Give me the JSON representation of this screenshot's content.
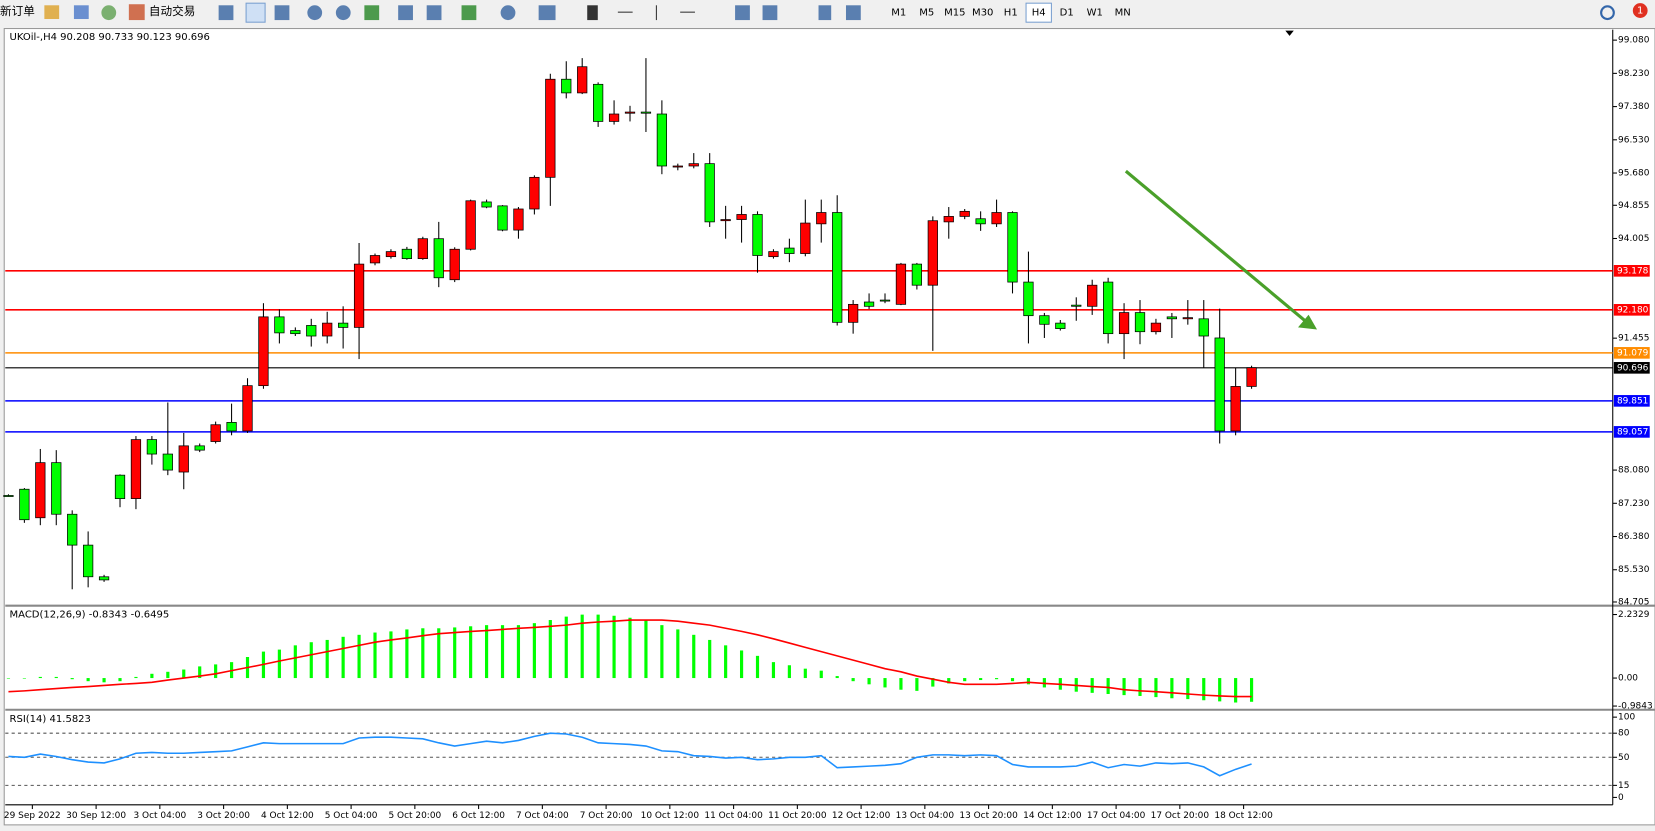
{
  "toolbar": {
    "new_order": "新订单",
    "auto_trade": "自动交易",
    "timeframes": [
      "M1",
      "M5",
      "M15",
      "M30",
      "H1",
      "H4",
      "D1",
      "W1",
      "MN"
    ],
    "active_timeframe": "H4",
    "notifications": "1"
  },
  "chart": {
    "type": "candlestick",
    "header": "UKOil-,H4  90.208 90.733 90.123 90.696",
    "up_color": "#ff0000",
    "down_color": "#00ff00",
    "ylim": [
      84.65,
      99.35
    ],
    "yticks": [
      {
        "value": 99.08,
        "label": "99.080"
      },
      {
        "value": 98.23,
        "label": "98.230"
      },
      {
        "value": 97.38,
        "label": "97.380"
      },
      {
        "value": 96.53,
        "label": "96.530"
      },
      {
        "value": 95.68,
        "label": "95.680"
      },
      94.855,
      {
        "value": 94.005,
        "label": "94.005"
      },
      91.455,
      {
        "value": 88.08,
        "label": "88.080"
      },
      {
        "value": 87.23,
        "label": "87.230"
      },
      {
        "value": 86.38,
        "label": "86.380"
      },
      {
        "value": 85.53,
        "label": "85.530"
      },
      84.705
    ],
    "levels": [
      {
        "value": 93.178,
        "color": "#ff0000"
      },
      {
        "value": 92.18,
        "label": "92.180",
        "color": "#ff0000"
      },
      {
        "value": 91.079,
        "color": "#ff8c00"
      },
      {
        "value": 90.696,
        "color": "#000000"
      },
      {
        "value": 89.851,
        "color": "#0000ff"
      },
      {
        "value": 89.057,
        "color": "#0000ff"
      }
    ],
    "time_labels": [
      "29 Sep 2022",
      "30 Sep 12:00",
      "3 Oct 04:00",
      "3 Oct 20:00",
      "4 Oct 12:00",
      "5 Oct 04:00",
      "5 Oct 20:00",
      "6 Oct 12:00",
      "7 Oct 04:00",
      "7 Oct 20:00",
      "10 Oct 12:00",
      "11 Oct 04:00",
      "11 Oct 20:00",
      "12 Oct 12:00",
      "13 Oct 04:00",
      "13 Oct 20:00",
      "14 Oct 12:00",
      "17 Oct 04:00",
      "17 Oct 20:00",
      "18 Oct 12:00"
    ],
    "candles": [
      [
        87.43,
        87.46,
        87.4,
        87.43
      ],
      [
        87.59,
        87.62,
        86.73,
        86.81
      ],
      [
        86.86,
        88.62,
        86.67,
        88.27
      ],
      [
        88.27,
        88.59,
        86.67,
        86.95
      ],
      [
        86.95,
        87.05,
        85.03,
        86.16
      ],
      [
        86.16,
        86.51,
        85.08,
        85.35
      ],
      [
        85.35,
        85.4,
        85.22,
        85.27
      ],
      [
        87.95,
        87.97,
        87.13,
        87.35
      ],
      [
        87.35,
        88.95,
        87.08,
        88.86
      ],
      [
        88.86,
        88.95,
        88.22,
        88.49
      ],
      [
        88.49,
        89.81,
        87.95,
        88.08
      ],
      [
        88.03,
        89.03,
        87.59,
        88.7
      ],
      [
        88.7,
        88.76,
        88.54,
        88.59
      ],
      [
        88.81,
        89.32,
        88.76,
        89.24
      ],
      [
        89.3,
        89.78,
        88.97,
        89.08
      ],
      [
        89.08,
        90.43,
        89.03,
        90.24
      ],
      [
        90.24,
        92.35,
        90.16,
        92.0
      ],
      [
        92.0,
        92.19,
        91.32,
        91.59
      ],
      [
        91.65,
        91.73,
        91.51,
        91.57
      ],
      [
        91.78,
        91.95,
        91.24,
        91.51
      ],
      [
        91.51,
        92.13,
        91.32,
        91.84
      ],
      [
        91.84,
        92.27,
        91.19,
        91.73
      ],
      [
        91.73,
        93.89,
        90.92,
        93.35
      ],
      [
        93.38,
        93.62,
        93.32,
        93.57
      ],
      [
        93.54,
        93.73,
        93.49,
        93.67
      ],
      [
        93.73,
        93.79,
        93.46,
        93.49
      ],
      [
        93.49,
        94.05,
        93.46,
        94.0
      ],
      [
        94.0,
        94.43,
        92.76,
        93.0
      ],
      [
        92.95,
        93.78,
        92.89,
        93.73
      ],
      [
        93.73,
        95.0,
        93.7,
        94.97
      ],
      [
        94.94,
        95.0,
        94.78,
        94.81
      ],
      [
        94.84,
        94.86,
        94.19,
        94.22
      ],
      [
        94.22,
        94.81,
        94.0,
        94.76
      ],
      [
        94.76,
        95.62,
        94.62,
        95.57
      ],
      [
        95.57,
        98.22,
        94.84,
        98.08
      ],
      [
        98.08,
        98.54,
        97.59,
        97.73
      ],
      [
        97.73,
        98.62,
        97.7,
        98.4
      ],
      [
        97.95,
        98.0,
        96.86,
        97.0
      ],
      [
        97.0,
        97.54,
        96.92,
        97.19
      ],
      [
        97.21,
        97.4,
        97.0,
        97.24
      ],
      [
        97.24,
        98.62,
        96.73,
        97.21
      ],
      [
        97.19,
        97.54,
        95.65,
        95.86
      ],
      [
        95.84,
        95.92,
        95.75,
        95.86
      ],
      [
        95.86,
        96.19,
        95.8,
        95.92
      ],
      [
        95.92,
        96.19,
        94.3,
        94.43
      ],
      [
        94.46,
        94.84,
        94.0,
        94.49
      ],
      [
        94.49,
        94.84,
        93.9,
        94.62
      ],
      [
        94.62,
        94.7,
        93.13,
        93.57
      ],
      [
        93.54,
        93.73,
        93.49,
        93.67
      ],
      [
        93.76,
        94.0,
        93.4,
        93.62
      ],
      [
        93.62,
        95.0,
        93.55,
        94.4
      ],
      [
        94.38,
        95.0,
        93.9,
        94.67
      ],
      [
        94.67,
        95.11,
        91.78,
        91.86
      ],
      [
        91.86,
        92.43,
        91.57,
        92.32
      ],
      [
        92.38,
        92.6,
        92.2,
        92.27
      ],
      [
        92.43,
        92.6,
        92.35,
        92.43
      ],
      [
        92.32,
        93.38,
        92.3,
        93.35
      ],
      [
        93.35,
        93.38,
        92.7,
        92.81
      ],
      [
        92.81,
        94.57,
        91.13,
        94.46
      ],
      [
        94.43,
        94.81,
        94.0,
        94.57
      ],
      [
        94.57,
        94.76,
        94.5,
        94.7
      ],
      [
        94.51,
        94.7,
        94.2,
        94.38
      ],
      [
        94.38,
        95.0,
        94.3,
        94.67
      ],
      [
        94.67,
        94.7,
        92.6,
        92.89
      ],
      [
        92.89,
        93.67,
        91.32,
        92.03
      ],
      [
        92.03,
        92.1,
        91.46,
        91.81
      ],
      [
        91.84,
        91.92,
        91.65,
        91.7
      ],
      [
        92.3,
        92.5,
        91.9,
        92.27
      ],
      [
        92.27,
        92.95,
        92.05,
        92.81
      ],
      [
        92.89,
        93.0,
        91.32,
        91.57
      ],
      [
        91.57,
        92.35,
        90.92,
        92.11
      ],
      [
        92.11,
        92.43,
        91.3,
        91.62
      ],
      [
        91.62,
        91.95,
        91.55,
        91.84
      ],
      [
        92.0,
        92.1,
        91.46,
        91.95
      ],
      [
        91.95,
        92.43,
        91.8,
        91.98
      ],
      [
        91.95,
        92.43,
        90.7,
        91.51
      ],
      [
        91.46,
        92.21,
        88.76,
        89.08
      ],
      [
        89.08,
        90.7,
        88.97,
        90.22
      ],
      [
        90.22,
        90.75,
        90.16,
        90.7
      ]
    ]
  },
  "macd": {
    "label": "MACD(12,26,9) -0.8343 -0.6495",
    "ylim": [
      -1.04,
      2.45
    ],
    "yticks": [
      2.2329,
      {
        "value": 0,
        "label": "0.00"
      },
      -0.9843
    ],
    "hist_color": "#00ff00",
    "signal_color": "#ff0000",
    "histogram": [
      0,
      0,
      0.04,
      0.04,
      -0.04,
      -0.11,
      -0.15,
      -0.11,
      0.04,
      0.15,
      0.22,
      0.3,
      0.41,
      0.48,
      0.56,
      0.74,
      0.93,
      1.0,
      1.15,
      1.26,
      1.34,
      1.45,
      1.52,
      1.6,
      1.64,
      1.71,
      1.75,
      1.75,
      1.78,
      1.82,
      1.86,
      1.86,
      1.86,
      1.93,
      2.04,
      2.16,
      2.23,
      2.23,
      2.19,
      2.12,
      2.04,
      1.86,
      1.71,
      1.52,
      1.34,
      1.15,
      0.97,
      0.78,
      0.56,
      0.45,
      0.33,
      0.26,
      0.07,
      -0.11,
      -0.22,
      -0.33,
      -0.41,
      -0.45,
      -0.3,
      -0.19,
      -0.11,
      -0.07,
      -0.04,
      -0.11,
      -0.22,
      -0.33,
      -0.41,
      -0.48,
      -0.52,
      -0.56,
      -0.6,
      -0.63,
      -0.67,
      -0.71,
      -0.74,
      -0.78,
      -0.82,
      -0.86,
      -0.8343
    ],
    "signal": [
      -0.48,
      -0.45,
      -0.41,
      -0.37,
      -0.33,
      -0.3,
      -0.26,
      -0.22,
      -0.19,
      -0.15,
      -0.07,
      0.0,
      0.07,
      0.15,
      0.26,
      0.37,
      0.48,
      0.6,
      0.71,
      0.82,
      0.93,
      1.04,
      1.15,
      1.26,
      1.34,
      1.41,
      1.49,
      1.56,
      1.6,
      1.64,
      1.67,
      1.71,
      1.75,
      1.78,
      1.82,
      1.86,
      1.93,
      1.97,
      2.0,
      2.04,
      2.04,
      2.04,
      2.0,
      1.93,
      1.86,
      1.75,
      1.64,
      1.52,
      1.38,
      1.23,
      1.08,
      0.93,
      0.78,
      0.63,
      0.48,
      0.33,
      0.22,
      0.07,
      -0.04,
      -0.15,
      -0.22,
      -0.22,
      -0.22,
      -0.19,
      -0.15,
      -0.19,
      -0.22,
      -0.26,
      -0.3,
      -0.33,
      -0.41,
      -0.45,
      -0.48,
      -0.52,
      -0.56,
      -0.6,
      -0.63,
      -0.65,
      -0.6495
    ]
  },
  "rsi": {
    "label": "RSI(14) 41.5823",
    "ylim": [
      0,
      100
    ],
    "yticks": [
      100,
      80,
      50,
      15,
      0
    ],
    "levels": [
      80,
      50,
      15
    ],
    "color": "#1e90ff",
    "values": [
      51,
      50,
      54,
      51,
      47,
      44,
      43,
      48,
      55,
      56,
      55,
      55,
      56,
      57,
      58,
      63,
      68,
      67,
      67,
      67,
      67,
      67,
      74,
      75,
      75,
      74,
      73,
      68,
      64,
      67,
      70,
      68,
      71,
      76,
      80,
      79,
      75,
      68,
      67,
      66,
      64,
      58,
      57,
      52,
      51,
      49,
      50,
      47,
      48,
      50,
      50,
      52,
      37,
      38,
      39,
      40,
      42,
      50,
      53,
      53,
      52,
      53,
      52,
      41,
      38,
      38,
      38,
      39,
      44,
      37,
      41,
      39,
      43,
      42,
      43,
      38,
      27,
      35,
      41.5823
    ]
  }
}
